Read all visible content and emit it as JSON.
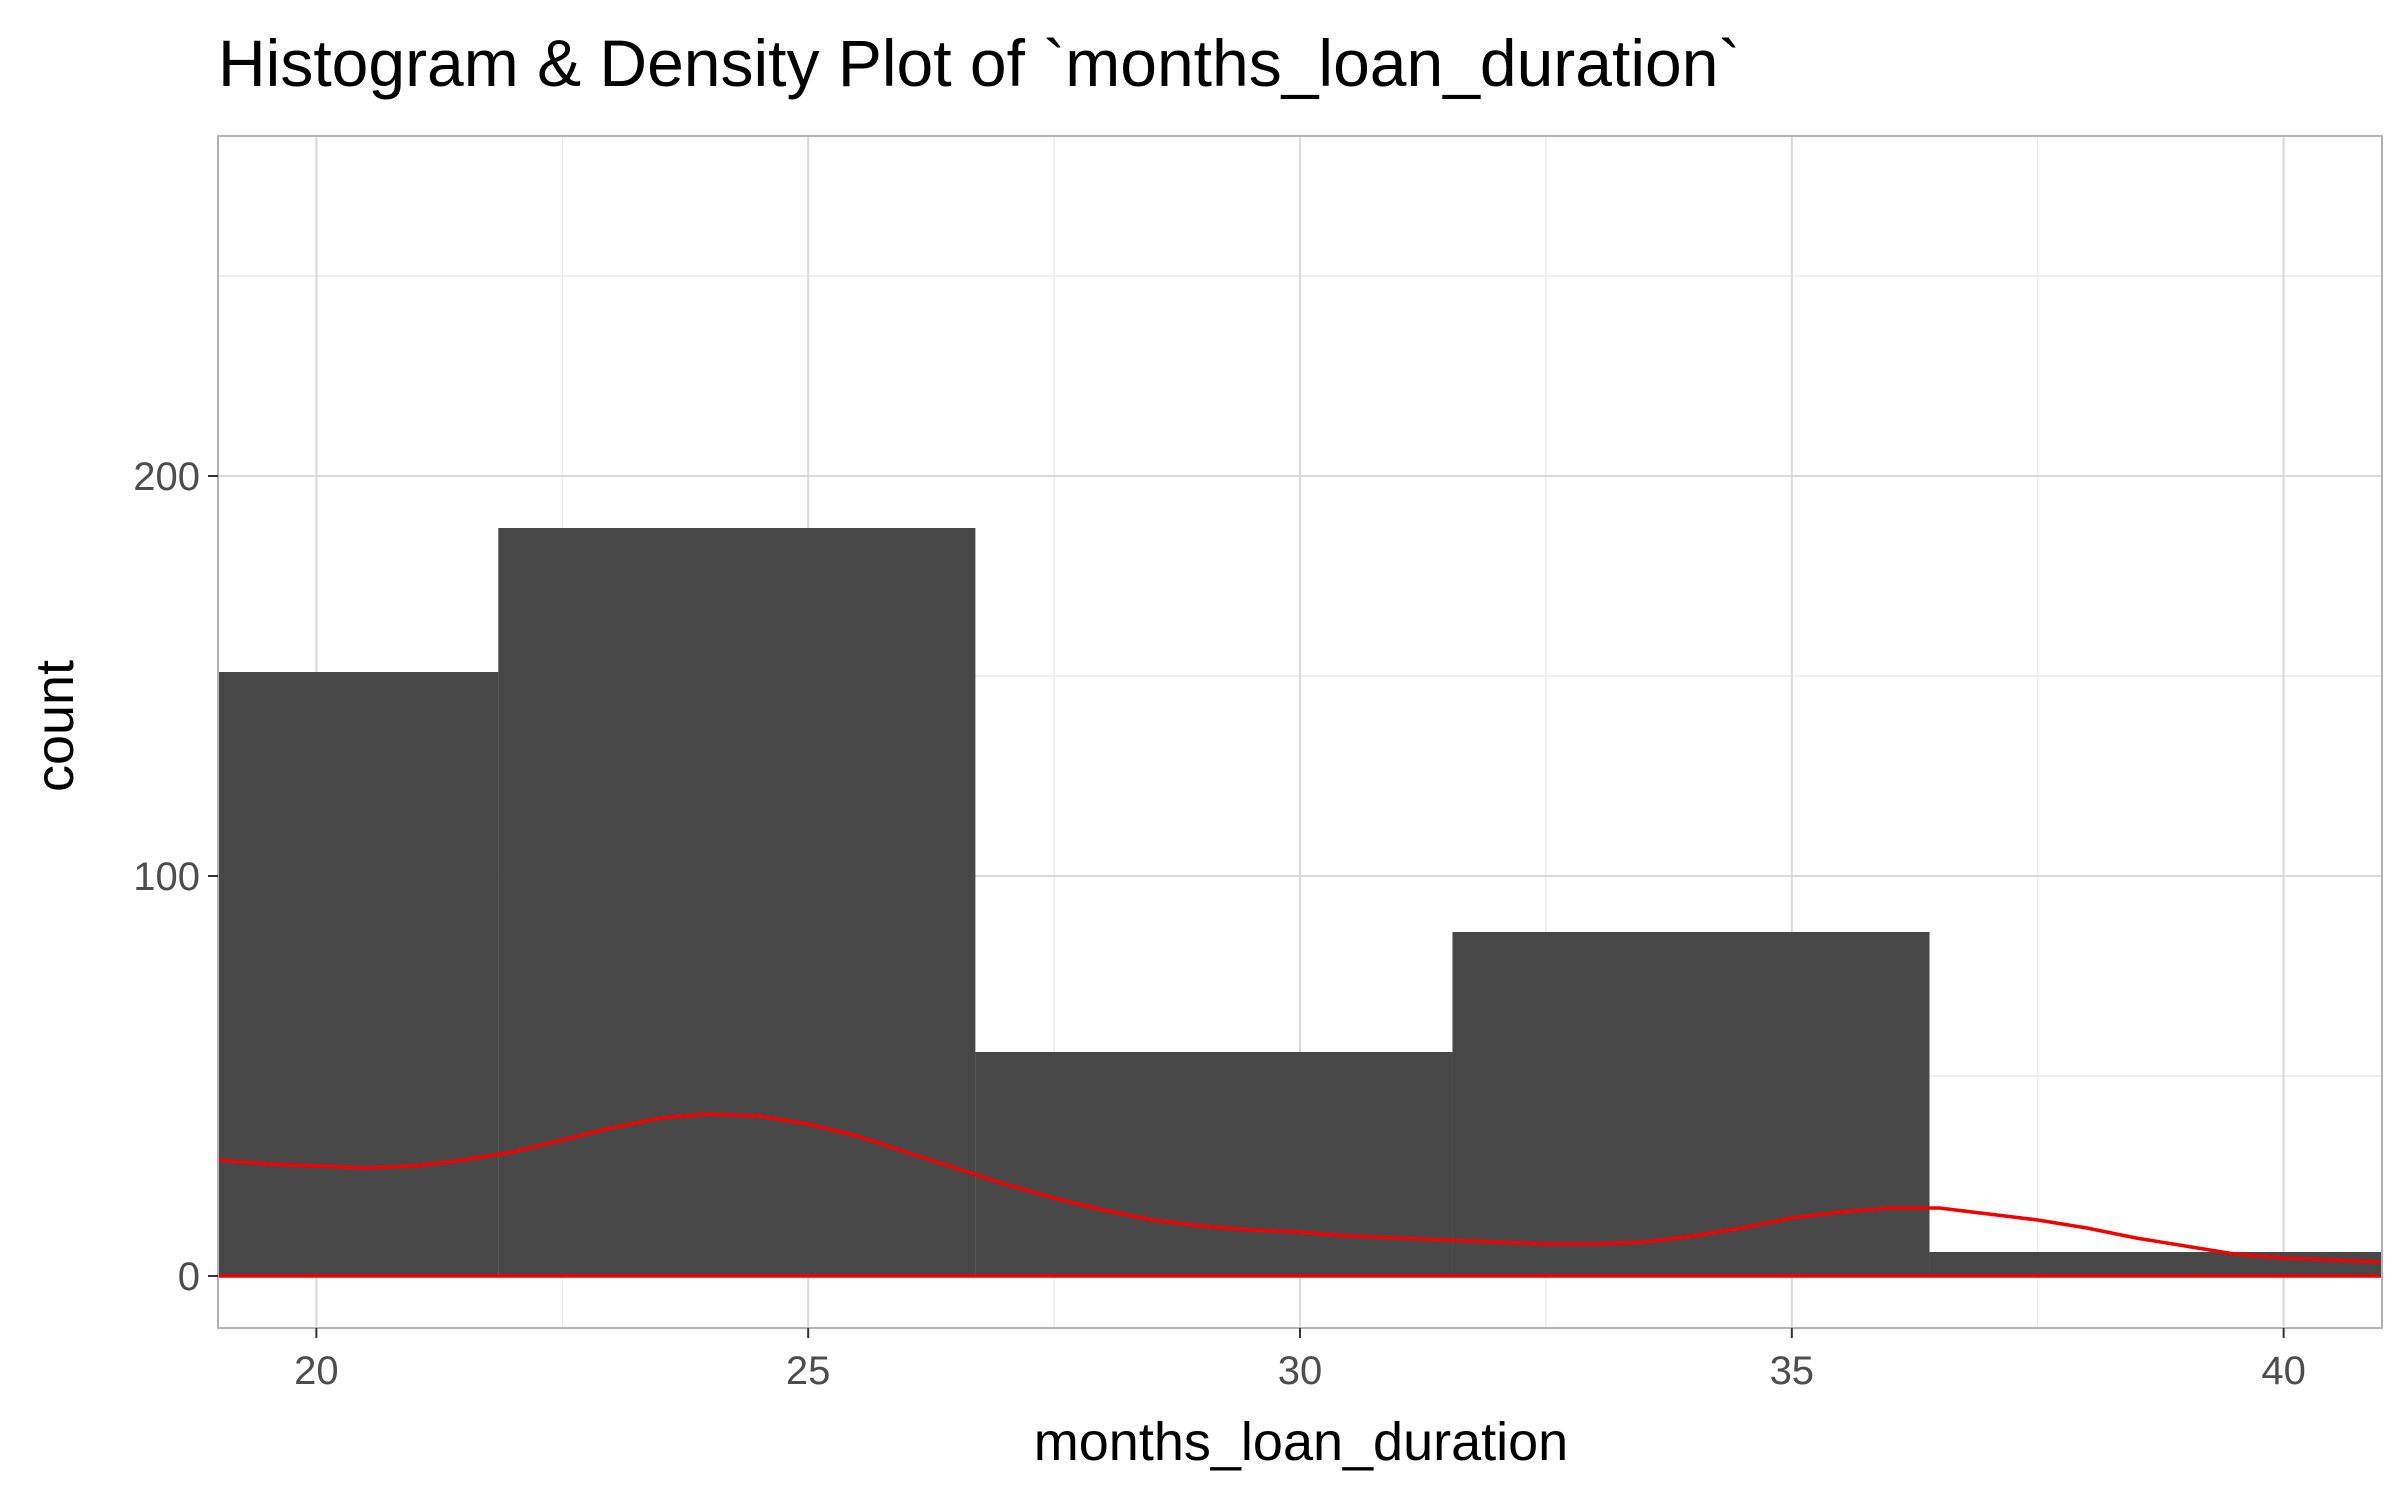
{
  "chart_data": {
    "type": "bar",
    "title": "Histogram & Density Plot of `months_loan_duration`",
    "xlabel": "months_loan_duration",
    "ylabel": "count",
    "xlim": [
      19,
      41
    ],
    "ylim": [
      -13,
      285
    ],
    "grid": true,
    "x_ticks": [
      20,
      25,
      30,
      35,
      40
    ],
    "y_ticks": [
      0,
      100,
      200
    ],
    "bins": [
      {
        "x0": 17.0,
        "x1": 21.85,
        "count": 151
      },
      {
        "x0": 21.85,
        "x1": 26.7,
        "count": 187
      },
      {
        "x0": 26.7,
        "x1": 31.55,
        "count": 56
      },
      {
        "x0": 31.55,
        "x1": 36.4,
        "count": 86
      },
      {
        "x0": 36.4,
        "x1": 41.25,
        "count": 6
      }
    ],
    "density_curve": {
      "x": [
        19,
        19.5,
        20,
        20.5,
        21,
        21.5,
        22,
        22.5,
        23,
        23.5,
        24,
        24.5,
        25,
        25.5,
        26,
        26.5,
        27,
        27.5,
        28,
        28.5,
        29,
        29.5,
        30,
        30.5,
        31,
        31.5,
        32,
        32.5,
        33,
        33.5,
        34,
        34.5,
        35,
        35.5,
        36,
        36.5,
        37,
        37.5,
        38,
        38.5,
        39,
        39.5,
        40,
        40.5,
        41
      ],
      "y": [
        29,
        28,
        27.5,
        27,
        27.5,
        29,
        31,
        34,
        37,
        39.5,
        40.5,
        40,
        38,
        35,
        31,
        27,
        23,
        19.5,
        16.5,
        14,
        12.5,
        11.5,
        11,
        10,
        9.5,
        9,
        8.5,
        8,
        8,
        8.5,
        10,
        12,
        14.5,
        16,
        17,
        17,
        15.5,
        14,
        12,
        9.5,
        7.5,
        5.5,
        4.5,
        4,
        3.5
      ]
    },
    "colors": {
      "bar": "#474747",
      "density": "#ee0000",
      "grid_major": "#d9d9d9",
      "grid_minor": "#ececec",
      "panel_border": "#b3b3b3"
    }
  }
}
